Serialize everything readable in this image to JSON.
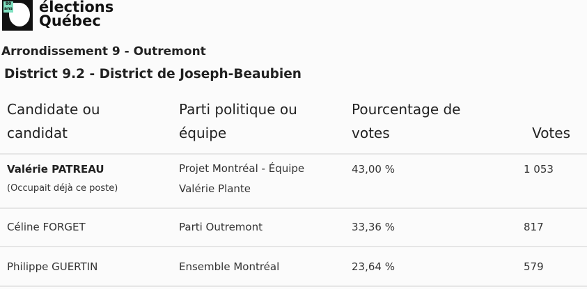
{
  "logo": {
    "badge": "80 ans",
    "line1": "élections",
    "line2": "Québec"
  },
  "arrondissement": "Arrondissement 9 - Outremont",
  "district": "District 9.2 - District de Joseph-Beaubien",
  "table": {
    "headers": [
      "Candidate ou candidat",
      "Parti politique ou équipe",
      "Pourcentage de votes",
      "Votes"
    ],
    "rows": [
      {
        "name": "Valérie PATREAU",
        "note": "(Occupait déjà ce poste)",
        "party": "Projet Montréal - Équipe Valérie Plante",
        "percent": "43,00 %",
        "votes": "1 053"
      },
      {
        "name": "Céline FORGET",
        "note": "",
        "party": "Parti Outremont",
        "percent": "33,36 %",
        "votes": "817"
      },
      {
        "name": "Philippe GUERTIN",
        "note": "",
        "party": "Ensemble Montréal",
        "percent": "23,64 %",
        "votes": "579"
      }
    ]
  }
}
